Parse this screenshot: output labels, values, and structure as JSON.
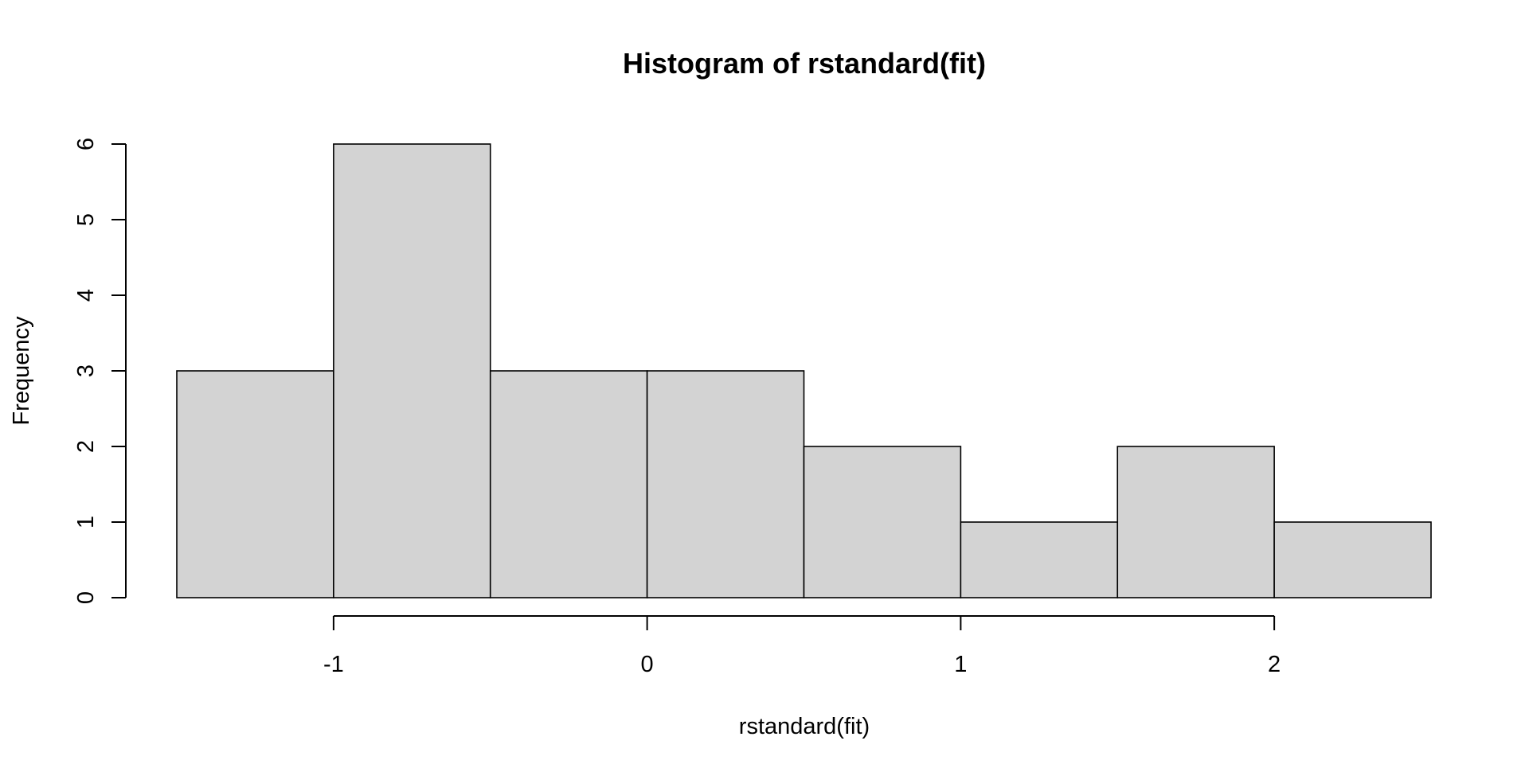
{
  "chart_data": {
    "type": "bar",
    "title": "Histogram of rstandard(fit)",
    "xlabel": "rstandard(fit)",
    "ylabel": "Frequency",
    "bins": [
      {
        "start": -1.5,
        "end": -1.0,
        "count": 3
      },
      {
        "start": -1.0,
        "end": -0.5,
        "count": 6
      },
      {
        "start": -0.5,
        "end": 0.0,
        "count": 3
      },
      {
        "start": 0.0,
        "end": 0.5,
        "count": 3
      },
      {
        "start": 0.5,
        "end": 1.0,
        "count": 2
      },
      {
        "start": 1.0,
        "end": 1.5,
        "count": 1
      },
      {
        "start": 1.5,
        "end": 2.0,
        "count": 2
      },
      {
        "start": 2.0,
        "end": 2.5,
        "count": 1
      }
    ],
    "x_ticks": [
      -1,
      0,
      1,
      2
    ],
    "x_tick_labels": [
      "-1",
      "0",
      "1",
      "2"
    ],
    "y_ticks": [
      0,
      1,
      2,
      3,
      4,
      5,
      6
    ],
    "y_tick_labels": [
      "0",
      "1",
      "2",
      "3",
      "4",
      "5",
      "6"
    ],
    "xlim": [
      -1.5,
      2.5
    ],
    "ylim": [
      0,
      6
    ],
    "grid": false,
    "legend": "none",
    "colors": {
      "bar_fill": "#d3d3d3",
      "bar_stroke": "#000000",
      "axis": "#000000",
      "text": "#000000"
    }
  }
}
